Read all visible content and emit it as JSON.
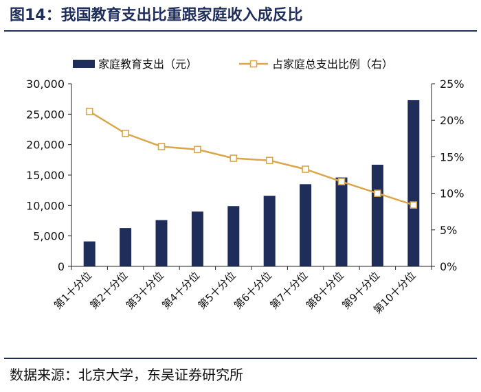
{
  "figure": {
    "title": "图14：我国教育支出比重跟家庭收入成反比",
    "source": "数据来源：北京大学，东吴证券研究所"
  },
  "colors": {
    "bar": "#1f2d5a",
    "line": "#dba64a",
    "axis": "#222222",
    "title": "#1f2d5a"
  },
  "chart_data": {
    "type": "bar+line",
    "categories": [
      "第1十分位",
      "第2十分位",
      "第3十分位",
      "第4十分位",
      "第5十分位",
      "第6十分位",
      "第7十分位",
      "第8十分位",
      "第9十分位",
      "第10十分位"
    ],
    "series": [
      {
        "name": "家庭教育支出（元）",
        "type": "bar",
        "axis": "left",
        "values": [
          4100,
          6300,
          7600,
          9000,
          9900,
          11600,
          13500,
          14600,
          16700,
          27300
        ]
      },
      {
        "name": "占家庭总支出比例（右）",
        "type": "line",
        "axis": "right",
        "values": [
          21.2,
          18.2,
          16.4,
          16.0,
          14.8,
          14.5,
          13.3,
          11.6,
          10.0,
          8.4
        ]
      }
    ],
    "left_axis": {
      "min": 0,
      "max": 30000,
      "step": 5000,
      "tick_labels": [
        "0",
        "5,000",
        "10,000",
        "15,000",
        "20,000",
        "25,000",
        "30,000"
      ]
    },
    "right_axis": {
      "min": 0,
      "max": 25,
      "step": 5,
      "tick_labels": [
        "0%",
        "5%",
        "10%",
        "15%",
        "20%",
        "25%"
      ]
    },
    "legend": {
      "position": "top",
      "items": [
        "家庭教育支出（元）",
        "占家庭总支出比例（右）"
      ]
    },
    "grid": false
  }
}
